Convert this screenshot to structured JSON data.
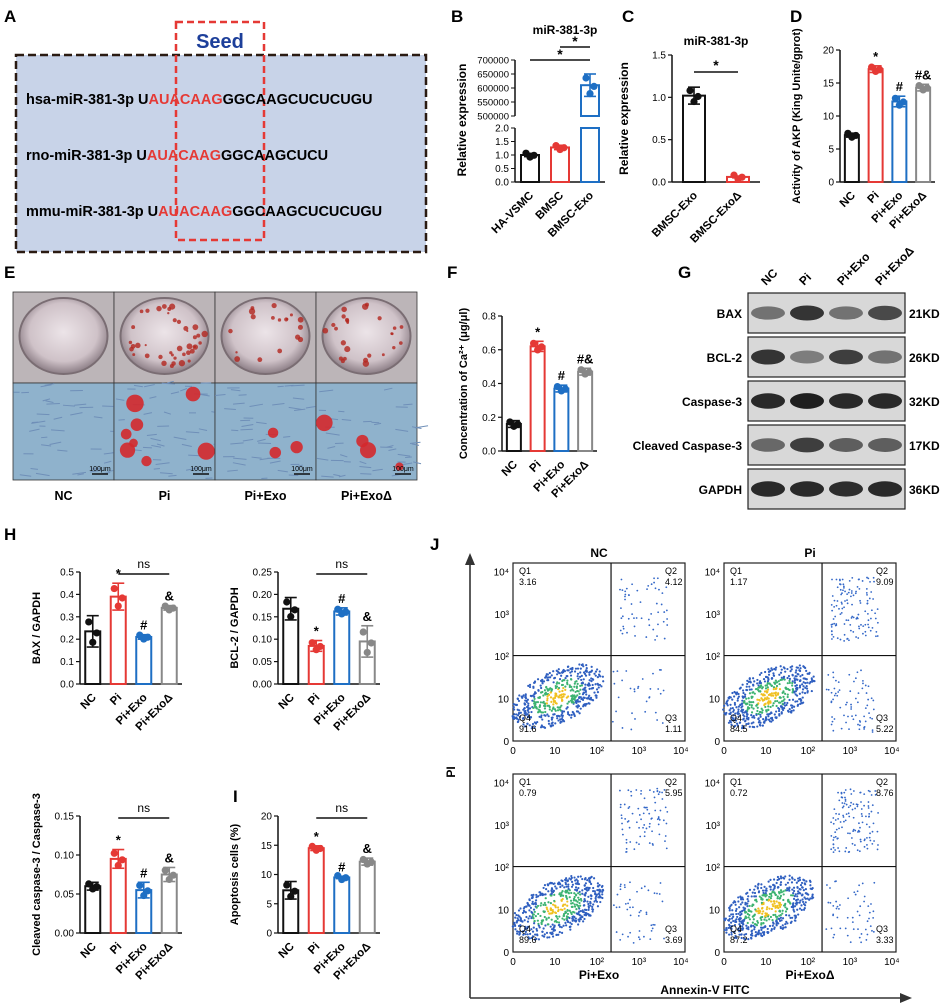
{
  "panels": {
    "A": {
      "label": "A",
      "seed_label": "Seed",
      "sequences": [
        {
          "name": "hsa-miR-381-3p",
          "u": "U",
          "seed": "AUACAAG",
          "rest": "GGCAAGCUCUCUGU"
        },
        {
          "name": "rno-miR-381-3p",
          "u": "U",
          "seed": "AUACAAG",
          "rest": "GGCAAGCUCU"
        },
        {
          "name": "mmu-miR-381-3p",
          "u": "U",
          "seed": "AUACAAG",
          "rest": "GGCAAGCUCUCUGU"
        }
      ]
    },
    "B": {
      "label": "B"
    },
    "C": {
      "label": "C"
    },
    "D": {
      "label": "D"
    },
    "E": {
      "label": "E",
      "groups": [
        "NC",
        "Pi",
        "Pi+Exo",
        "Pi+ExoΔ"
      ],
      "scale_bar": "100μm"
    },
    "F": {
      "label": "F"
    },
    "G": {
      "label": "G",
      "lanes": [
        "NC",
        "Pi",
        "Pi+Exo",
        "Pi+ExoΔ"
      ],
      "proteins": [
        {
          "name": "BAX",
          "kd": "21KD",
          "intensity": [
            0.55,
            0.85,
            0.55,
            0.75
          ]
        },
        {
          "name": "BCL-2",
          "kd": "26KD",
          "intensity": [
            0.85,
            0.5,
            0.8,
            0.55
          ]
        },
        {
          "name": "Caspase-3",
          "kd": "32KD",
          "intensity": [
            0.9,
            0.95,
            0.9,
            0.9
          ]
        },
        {
          "name": "Cleaved Caspase-3",
          "kd": "17KD",
          "intensity": [
            0.6,
            0.8,
            0.65,
            0.65
          ]
        },
        {
          "name": "GAPDH",
          "kd": "36KD",
          "intensity": [
            0.9,
            0.9,
            0.88,
            0.9
          ]
        }
      ]
    },
    "H": {
      "label": "H"
    },
    "I": {
      "label": "I"
    },
    "J": {
      "label": "J",
      "y_label": "PI",
      "x_label": "Annexin-V FITC",
      "ticks": [
        "0",
        "10",
        "10²",
        "10³",
        "10⁴"
      ],
      "plots": [
        {
          "title": "NC",
          "sub": "",
          "q1": "3.16",
          "q2": "4.12",
          "q3": "1.11",
          "q4": "91.6",
          "spread": 0.04,
          "late": 0.04
        },
        {
          "title": "Pi",
          "sub": "",
          "q1": "1.17",
          "q2": "9.09",
          "q3": "5.22",
          "q4": "84.5",
          "spread": 0.09,
          "late": 0.09
        },
        {
          "title": "",
          "sub": "Pi+Exo",
          "q1": "0.79",
          "q2": "5.95",
          "q3": "3.69",
          "q4": "89.6",
          "spread": 0.06,
          "late": 0.06
        },
        {
          "title": "",
          "sub": "Pi+ExoΔ",
          "q1": "0.72",
          "q2": "8.76",
          "q3": "3.33",
          "q4": "87.2",
          "spread": 0.07,
          "late": 0.09
        }
      ]
    }
  },
  "chart_data": [
    {
      "id": "B",
      "type": "bar",
      "title": "miR-381-3p",
      "ylabel": "Relative expression",
      "categories": [
        "HA-VSMC",
        "BMSC",
        "BMSC-Exo"
      ],
      "values": [
        1.0,
        1.28,
        610000
      ],
      "errors": [
        0.06,
        0.08,
        40000
      ],
      "colors": [
        "#111111",
        "#e53935",
        "#1e6fc4"
      ],
      "broken_axis": {
        "lower": [
          0,
          2.0
        ],
        "upper": [
          500000,
          700000
        ]
      },
      "lower_ticks": [
        "0.0",
        "0.5",
        "1.0",
        "1.5",
        "2.0"
      ],
      "upper_ticks": [
        "500000",
        "550000",
        "600000",
        "650000",
        "700000"
      ],
      "annotations": [
        {
          "text": "*"
        },
        {
          "text": "*"
        }
      ]
    },
    {
      "id": "C",
      "type": "bar",
      "title": "miR-381-3p",
      "ylabel": "Relative expression",
      "categories": [
        "BMSC-Exo",
        "BMSC-ExoΔ"
      ],
      "values": [
        1.02,
        0.06
      ],
      "errors": [
        0.1,
        0.01
      ],
      "colors": [
        "#111111",
        "#e53935"
      ],
      "ylim": [
        0,
        1.5
      ],
      "ticks": [
        "0.0",
        "0.5",
        "1.0",
        "1.5"
      ],
      "annotations": [
        {
          "text": "*"
        }
      ]
    },
    {
      "id": "D",
      "type": "bar",
      "ylabel": "Activity of AKP (King Unite/gprot)",
      "categories": [
        "NC",
        "Pi",
        "Pi+Exo",
        "Pi+ExoΔ"
      ],
      "values": [
        7.1,
        17.1,
        12.2,
        14.3
      ],
      "errors": [
        0.3,
        0.5,
        0.8,
        0.5
      ],
      "colors": [
        "#111111",
        "#e53935",
        "#1e6fc4",
        "#888888"
      ],
      "ylim": [
        0,
        20
      ],
      "ticks": [
        "0",
        "5",
        "10",
        "15",
        "20"
      ],
      "marks": [
        "",
        "*",
        "#",
        "#&"
      ]
    },
    {
      "id": "F",
      "type": "bar",
      "ylabel": "Concentration of Ca²⁺ (μg/μl)",
      "categories": [
        "NC",
        "Pi",
        "Pi+Exo",
        "Pi+ExoΔ"
      ],
      "values": [
        0.16,
        0.62,
        0.37,
        0.47
      ],
      "errors": [
        0.02,
        0.03,
        0.02,
        0.02
      ],
      "colors": [
        "#111111",
        "#e53935",
        "#1e6fc4",
        "#888888"
      ],
      "ylim": [
        0,
        0.8
      ],
      "ticks": [
        "0.0",
        "0.2",
        "0.4",
        "0.6",
        "0.8"
      ],
      "marks": [
        "",
        "*",
        "#",
        "#&"
      ]
    },
    {
      "id": "H1",
      "type": "bar",
      "ylabel": "BAX / GAPDH",
      "categories": [
        "NC",
        "Pi",
        "Pi+Exo",
        "Pi+ExoΔ"
      ],
      "values": [
        0.235,
        0.39,
        0.21,
        0.34
      ],
      "errors": [
        0.07,
        0.06,
        0.01,
        0.01
      ],
      "colors": [
        "#111111",
        "#e53935",
        "#1e6fc4",
        "#888888"
      ],
      "ylim": [
        0,
        0.5
      ],
      "ticks": [
        "0.0",
        "0.1",
        "0.2",
        "0.3",
        "0.4",
        "0.5"
      ],
      "marks": [
        "",
        "*",
        "#",
        "&"
      ],
      "ns": "ns"
    },
    {
      "id": "H2",
      "type": "bar",
      "ylabel": "BCL-2 / GAPDH",
      "categories": [
        "NC",
        "Pi",
        "Pi+Exo",
        "Pi+ExoΔ"
      ],
      "values": [
        0.168,
        0.085,
        0.162,
        0.095
      ],
      "errors": [
        0.025,
        0.012,
        0.008,
        0.035
      ],
      "colors": [
        "#111111",
        "#e53935",
        "#1e6fc4",
        "#888888"
      ],
      "ylim": [
        0,
        0.25
      ],
      "ticks": [
        "0.00",
        "0.05",
        "0.10",
        "0.15",
        "0.20",
        "0.25"
      ],
      "marks": [
        "",
        "*",
        "#",
        "&"
      ],
      "ns": "ns"
    },
    {
      "id": "H3",
      "type": "bar",
      "ylabel": "Cleaved caspase-3 / Caspase-3",
      "categories": [
        "NC",
        "Pi",
        "Pi+Exo",
        "Pi+ExoΔ"
      ],
      "values": [
        0.06,
        0.095,
        0.055,
        0.075
      ],
      "errors": [
        0.005,
        0.012,
        0.01,
        0.009
      ],
      "colors": [
        "#111111",
        "#e53935",
        "#1e6fc4",
        "#888888"
      ],
      "ylim": [
        0,
        0.15
      ],
      "ticks": [
        "0.00",
        "0.05",
        "0.10",
        "0.15"
      ],
      "marks": [
        "",
        "*",
        "#",
        "&"
      ],
      "ns": "ns"
    },
    {
      "id": "I",
      "type": "bar",
      "ylabel": "Apoptosis cells (%)",
      "categories": [
        "NC",
        "Pi",
        "Pi+Exo",
        "Pi+ExoΔ"
      ],
      "values": [
        7.3,
        14.5,
        9.5,
        12.2
      ],
      "errors": [
        1.5,
        0.4,
        0.2,
        0.6
      ],
      "colors": [
        "#111111",
        "#e53935",
        "#1e6fc4",
        "#888888"
      ],
      "ylim": [
        0,
        20
      ],
      "ticks": [
        "0",
        "5",
        "10",
        "15",
        "20"
      ],
      "marks": [
        "",
        "*",
        "#",
        "&"
      ],
      "ns": "ns"
    }
  ]
}
